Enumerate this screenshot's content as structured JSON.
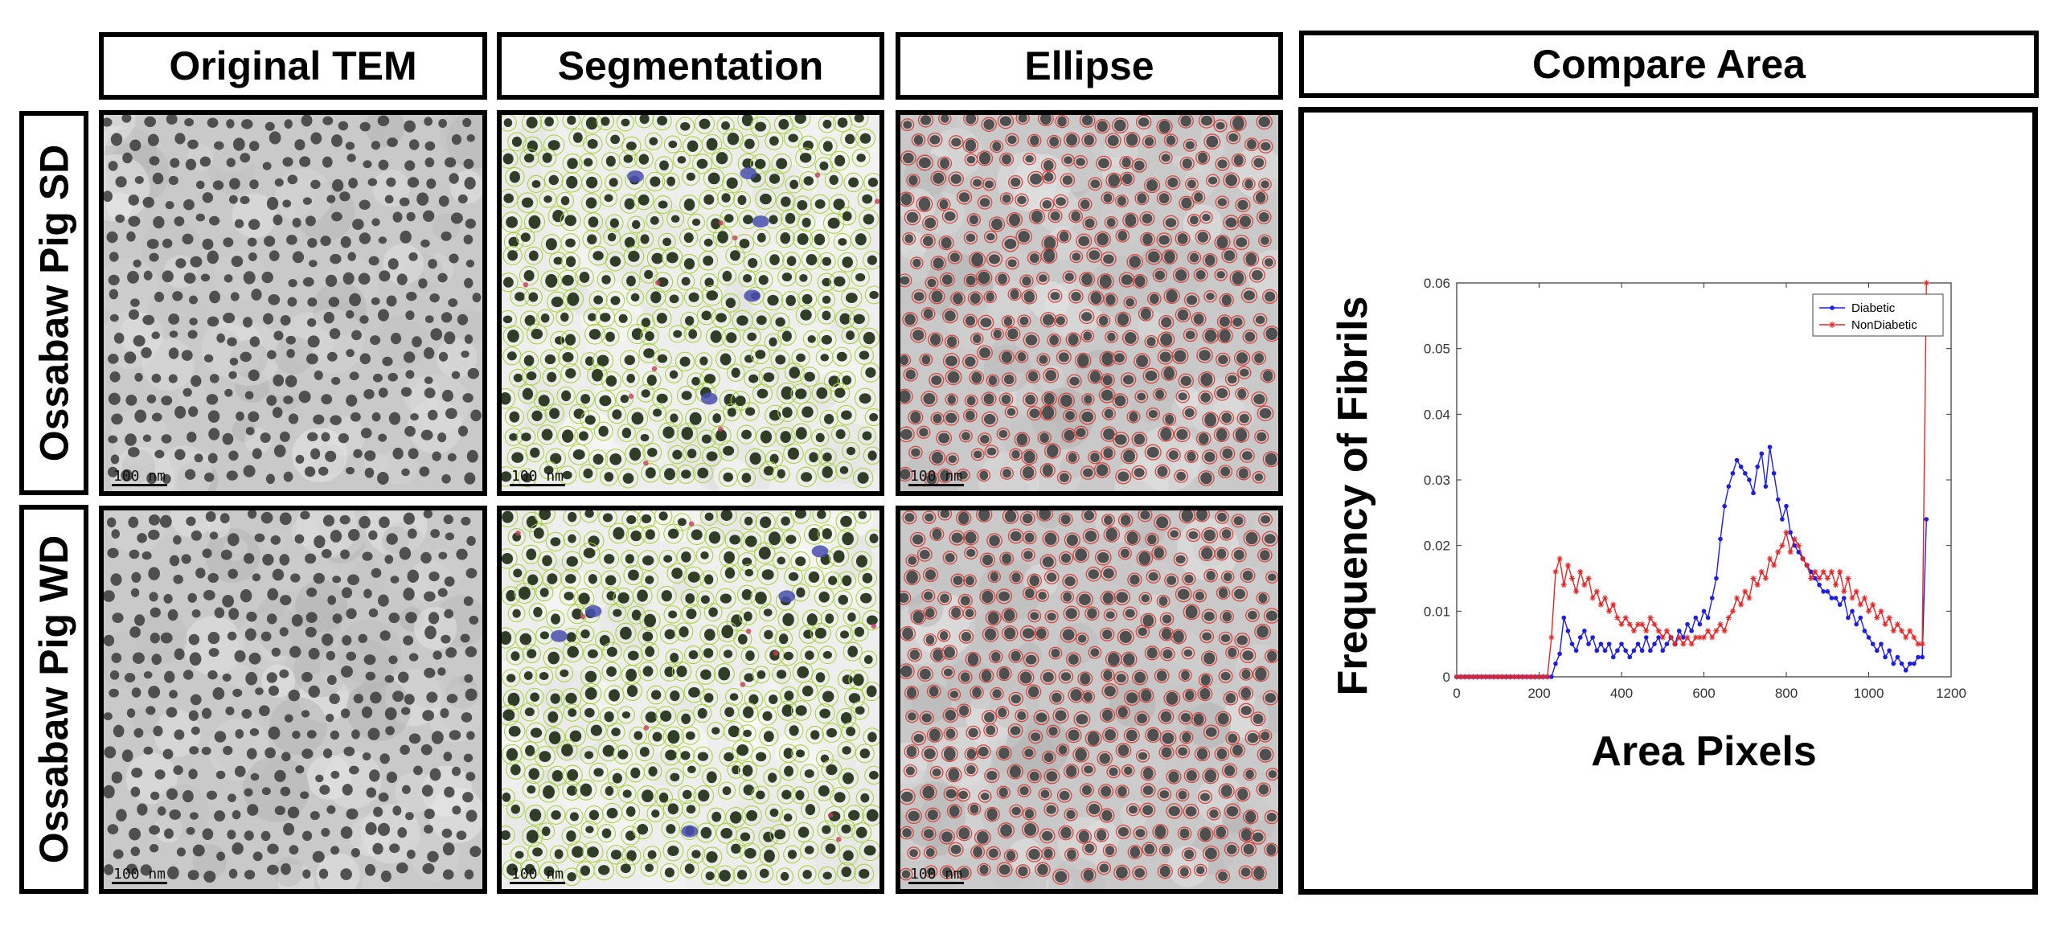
{
  "columns": [
    "Original TEM",
    "Segmentation",
    "Ellipse",
    "Compare Area"
  ],
  "rows": [
    "Ossabaw Pig SD",
    "Ossabaw Pig WD"
  ],
  "scale_label": "100 nm",
  "colors": {
    "diabetic": "#1f1fe0",
    "nondiabetic": "#e02828",
    "segmentation_outline": "#a6d23a",
    "ellipse": "#d9473f"
  },
  "chart_data": {
    "type": "line",
    "xlabel": "Area Pixels",
    "ylabel": "Frequency of Fibrils",
    "xlim": [
      0,
      1200
    ],
    "ylim": [
      0,
      0.06
    ],
    "xticks": [
      0,
      200,
      400,
      600,
      800,
      1000,
      1200
    ],
    "yticks": [
      0,
      0.01,
      0.02,
      0.03,
      0.04,
      0.05,
      0.06
    ],
    "ytick_labels": [
      "0",
      "0.01",
      "0.02",
      "0.03",
      "0.04",
      "0.05",
      "0.06"
    ],
    "legend_position": "top-right",
    "series": [
      {
        "name": "Diabetic",
        "color": "#1f1fe0",
        "marker": "dot",
        "x": [
          0,
          10,
          20,
          30,
          40,
          50,
          60,
          70,
          80,
          90,
          100,
          110,
          120,
          130,
          140,
          150,
          160,
          170,
          180,
          190,
          200,
          210,
          220,
          230,
          240,
          250,
          260,
          270,
          280,
          290,
          300,
          310,
          320,
          330,
          340,
          350,
          360,
          370,
          380,
          390,
          400,
          410,
          420,
          430,
          440,
          450,
          460,
          470,
          480,
          490,
          500,
          510,
          520,
          530,
          540,
          550,
          560,
          570,
          580,
          590,
          600,
          610,
          620,
          630,
          640,
          650,
          660,
          670,
          680,
          690,
          700,
          710,
          720,
          730,
          740,
          750,
          760,
          770,
          780,
          790,
          800,
          810,
          820,
          830,
          840,
          850,
          860,
          870,
          880,
          890,
          900,
          910,
          920,
          930,
          940,
          950,
          960,
          970,
          980,
          990,
          1000,
          1010,
          1020,
          1030,
          1040,
          1050,
          1060,
          1070,
          1080,
          1090,
          1100,
          1110,
          1120,
          1130,
          1140
        ],
        "y": [
          0,
          0,
          0,
          0,
          0,
          0,
          0,
          0,
          0,
          0,
          0,
          0,
          0,
          0,
          0,
          0,
          0,
          0,
          0,
          0,
          0,
          0,
          0,
          0,
          0.002,
          0.0035,
          0.009,
          0.007,
          0.005,
          0.004,
          0.006,
          0.007,
          0.005,
          0.006,
          0.004,
          0.005,
          0.004,
          0.005,
          0.003,
          0.004,
          0.005,
          0.004,
          0.003,
          0.004,
          0.005,
          0.004,
          0.006,
          0.004,
          0.005,
          0.006,
          0.004,
          0.005,
          0.006,
          0.005,
          0.007,
          0.006,
          0.008,
          0.007,
          0.009,
          0.008,
          0.01,
          0.009,
          0.012,
          0.015,
          0.021,
          0.026,
          0.029,
          0.031,
          0.033,
          0.032,
          0.031,
          0.03,
          0.028,
          0.032,
          0.034,
          0.029,
          0.035,
          0.031,
          0.027,
          0.024,
          0.026,
          0.022,
          0.02,
          0.019,
          0.018,
          0.017,
          0.016,
          0.015,
          0.014,
          0.013,
          0.013,
          0.012,
          0.012,
          0.011,
          0.012,
          0.009,
          0.01,
          0.008,
          0.009,
          0.007,
          0.006,
          0.005,
          0.004,
          0.005,
          0.003,
          0.004,
          0.002,
          0.003,
          0.002,
          0.001,
          0.002,
          0.002,
          0.003,
          0.003,
          0.024
        ],
        "note": ""
      },
      {
        "name": "NonDiabetic",
        "color": "#e02828",
        "marker": "star",
        "x": [
          0,
          10,
          20,
          30,
          40,
          50,
          60,
          70,
          80,
          90,
          100,
          110,
          120,
          130,
          140,
          150,
          160,
          170,
          180,
          190,
          200,
          210,
          220,
          230,
          240,
          250,
          260,
          270,
          280,
          290,
          300,
          310,
          320,
          330,
          340,
          350,
          360,
          370,
          380,
          390,
          400,
          410,
          420,
          430,
          440,
          450,
          460,
          470,
          480,
          490,
          500,
          510,
          520,
          530,
          540,
          550,
          560,
          570,
          580,
          590,
          600,
          610,
          620,
          630,
          640,
          650,
          660,
          670,
          680,
          690,
          700,
          710,
          720,
          730,
          740,
          750,
          760,
          770,
          780,
          790,
          800,
          810,
          820,
          830,
          840,
          850,
          860,
          870,
          880,
          890,
          900,
          910,
          920,
          930,
          940,
          950,
          960,
          970,
          980,
          990,
          1000,
          1010,
          1020,
          1030,
          1040,
          1050,
          1060,
          1070,
          1080,
          1090,
          1100,
          1110,
          1120,
          1130,
          1140
        ],
        "y": [
          0,
          0,
          0,
          0,
          0,
          0,
          0,
          0,
          0,
          0,
          0,
          0,
          0,
          0,
          0,
          0,
          0,
          0,
          0,
          0,
          0,
          0,
          0,
          0.006,
          0.016,
          0.018,
          0.014,
          0.017,
          0.015,
          0.013,
          0.016,
          0.014,
          0.015,
          0.012,
          0.013,
          0.011,
          0.012,
          0.01,
          0.011,
          0.009,
          0.008,
          0.009,
          0.008,
          0.007,
          0.008,
          0.008,
          0.007,
          0.009,
          0.008,
          0.007,
          0.006,
          0.007,
          0.006,
          0.005,
          0.006,
          0.005,
          0.006,
          0.005,
          0.006,
          0.006,
          0.006,
          0.007,
          0.006,
          0.007,
          0.008,
          0.007,
          0.009,
          0.01,
          0.012,
          0.011,
          0.013,
          0.012,
          0.015,
          0.014,
          0.016,
          0.015,
          0.018,
          0.017,
          0.019,
          0.02,
          0.022,
          0.019,
          0.021,
          0.02,
          0.018,
          0.017,
          0.015,
          0.016,
          0.015,
          0.016,
          0.015,
          0.016,
          0.014,
          0.016,
          0.013,
          0.015,
          0.012,
          0.013,
          0.011,
          0.012,
          0.01,
          0.011,
          0.009,
          0.01,
          0.008,
          0.009,
          0.007,
          0.008,
          0.007,
          0.006,
          0.007,
          0.006,
          0.005,
          0.005,
          0.06
        ]
      }
    ]
  }
}
